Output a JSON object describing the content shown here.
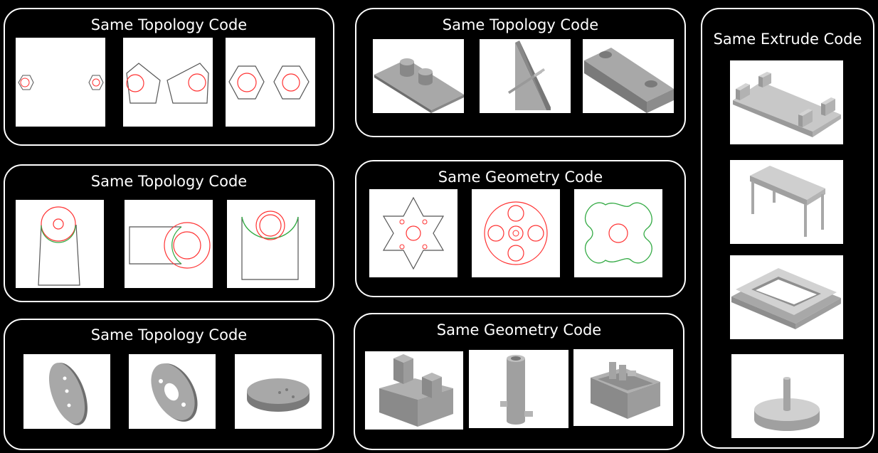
{
  "groups": [
    {
      "id": "g1",
      "title": "Same Topology Code"
    },
    {
      "id": "g2",
      "title": "Same Topology Code"
    },
    {
      "id": "g3",
      "title": "Same Topology Code"
    },
    {
      "id": "g4",
      "title": "Same Topology Code"
    },
    {
      "id": "g5",
      "title": "Same Geometry Code"
    },
    {
      "id": "g6",
      "title": "Same Geometry Code"
    },
    {
      "id": "g7",
      "title": "Same Extrude Code"
    }
  ],
  "colors": {
    "background": "#000000",
    "frame": "#ffffff",
    "sketch_line": "#555555",
    "circle_red": "#ff3333",
    "curve_green": "#33aa44",
    "solid_gray": "#a6a6a6"
  }
}
